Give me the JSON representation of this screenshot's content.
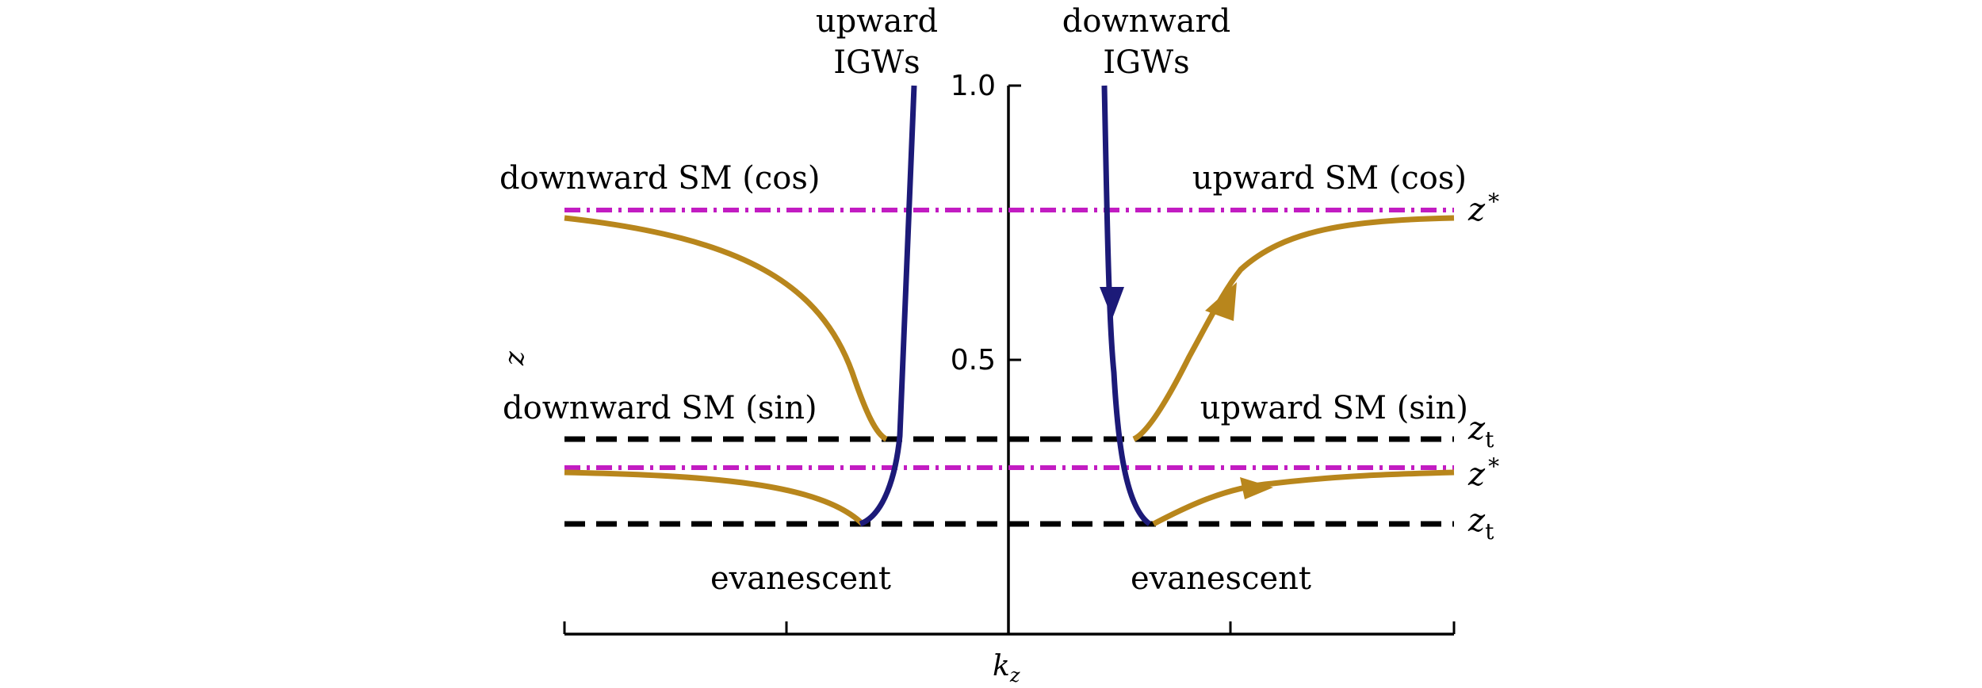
{
  "y_axis": {
    "ticks": [
      {
        "value": 1.0,
        "label": "1.0"
      },
      {
        "value": 0.5,
        "label": "0.5"
      }
    ],
    "label": "z"
  },
  "x_axis": {
    "label_main": "k",
    "label_sub": "z"
  },
  "labels": {
    "upward_igw_line1": "upward",
    "upward_igw_line2": "IGWs",
    "downward_igw_line1": "downward",
    "downward_igw_line2": "IGWs",
    "downward_sm_cos": "downward SM (cos)",
    "upward_sm_cos": "upward SM (cos)",
    "downward_sm_sin": "downward SM (sin)",
    "upward_sm_sin": "upward SM (sin)",
    "evanescent_left": "evanescent",
    "evanescent_right": "evanescent"
  },
  "level_labels": {
    "zstar_top_main": "z",
    "zstar_top_sup": "*",
    "zt_top_main": "z",
    "zt_top_sub": "t",
    "zstar_bottom_main": "z",
    "zstar_bottom_sup": "*",
    "zt_bottom_main": "z",
    "zt_bottom_sub": "t"
  },
  "colors": {
    "igw": "#1c1a78",
    "surface_mode": "#b8861c",
    "zstar_line": "#c21cc2",
    "zt_line": "#000000",
    "axis": "#000000"
  }
}
